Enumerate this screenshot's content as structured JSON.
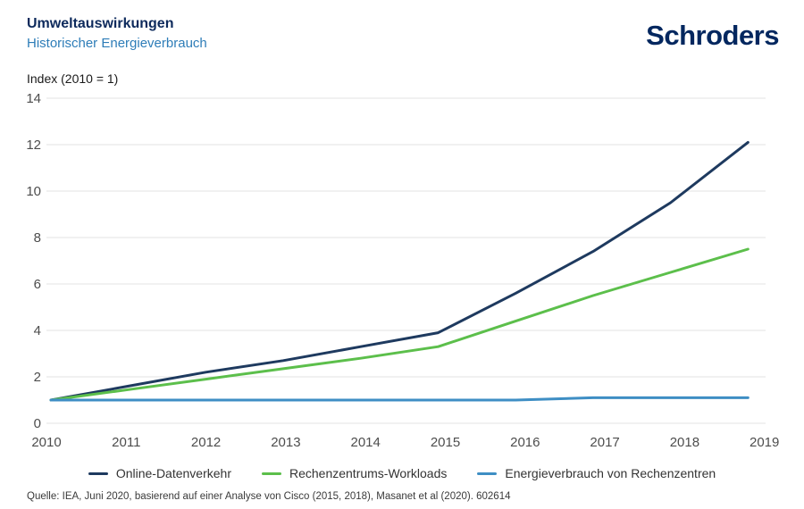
{
  "header": {
    "title": "Umweltauswirkungen",
    "subtitle": "Historischer Energieverbrauch",
    "logo": "Schroders"
  },
  "index_axis_label": "Index (2010 = 1)",
  "chart_data": {
    "type": "line",
    "title": "Historischer Energieverbrauch",
    "ylabel": "Index (2010 = 1)",
    "xlabel": "",
    "ylim": [
      0,
      14
    ],
    "yticks": [
      0,
      2,
      4,
      6,
      8,
      10,
      12,
      14
    ],
    "x": [
      2010,
      2011,
      2012,
      2013,
      2014,
      2015,
      2016,
      2017,
      2018,
      2019
    ],
    "xticks": [
      "2010",
      "2011",
      "2012",
      "2013",
      "2014",
      "2015",
      "2016",
      "2017",
      "2018",
      "2019"
    ],
    "grid": "horizontal",
    "legend_position": "bottom",
    "series": [
      {
        "name": "Online-Datenverkehr",
        "color": "#1e3a5f",
        "values": [
          1.0,
          1.6,
          2.2,
          2.7,
          3.3,
          3.9,
          5.6,
          7.4,
          9.5,
          12.1
        ]
      },
      {
        "name": "Rechenzentrums-Workloads",
        "color": "#5cbf4b",
        "values": [
          1.0,
          1.45,
          1.9,
          2.35,
          2.8,
          3.3,
          4.4,
          5.5,
          6.5,
          7.5
        ]
      },
      {
        "name": "Energieverbrauch von Rechenzentren",
        "color": "#3e8ec4",
        "values": [
          1.0,
          1.0,
          1.0,
          1.0,
          1.0,
          1.0,
          1.0,
          1.1,
          1.1,
          1.1
        ]
      }
    ]
  },
  "footer": {
    "source": "Quelle: IEA, Juni 2020, basierend auf einer Analyse von Cisco (2015, 2018), Masanet et al (2020). 602614"
  },
  "colors": {
    "title_navy": "#0d2a5c",
    "subtitle_blue": "#2e7db8",
    "logo_navy": "#03275f",
    "gridline_gray": "#e3e3e3",
    "axis_text_gray": "#4d4d4d"
  }
}
